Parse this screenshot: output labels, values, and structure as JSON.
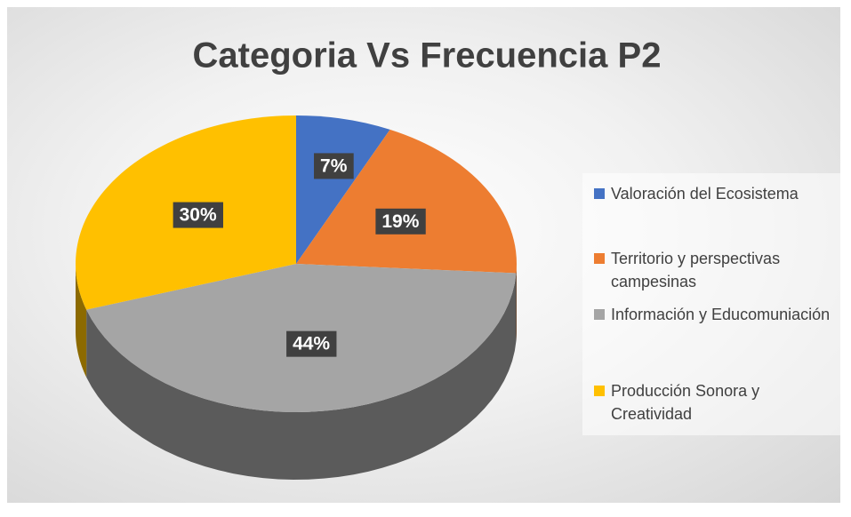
{
  "chart_data": {
    "type": "pie",
    "title": "Categoria Vs Frecuencia P2",
    "categories": [
      "Valoración del Ecosistema",
      "Territorio y perspectivas campesinas",
      "Información y Educomuniación",
      "Producción Sonora y Creatividad"
    ],
    "values": [
      7,
      19,
      44,
      30
    ],
    "value_labels": [
      "7%",
      "19%",
      "44%",
      "30%"
    ],
    "colors": [
      "#4472c4",
      "#ed7d31",
      "#a5a5a5",
      "#ffc000"
    ],
    "legend": "right"
  }
}
